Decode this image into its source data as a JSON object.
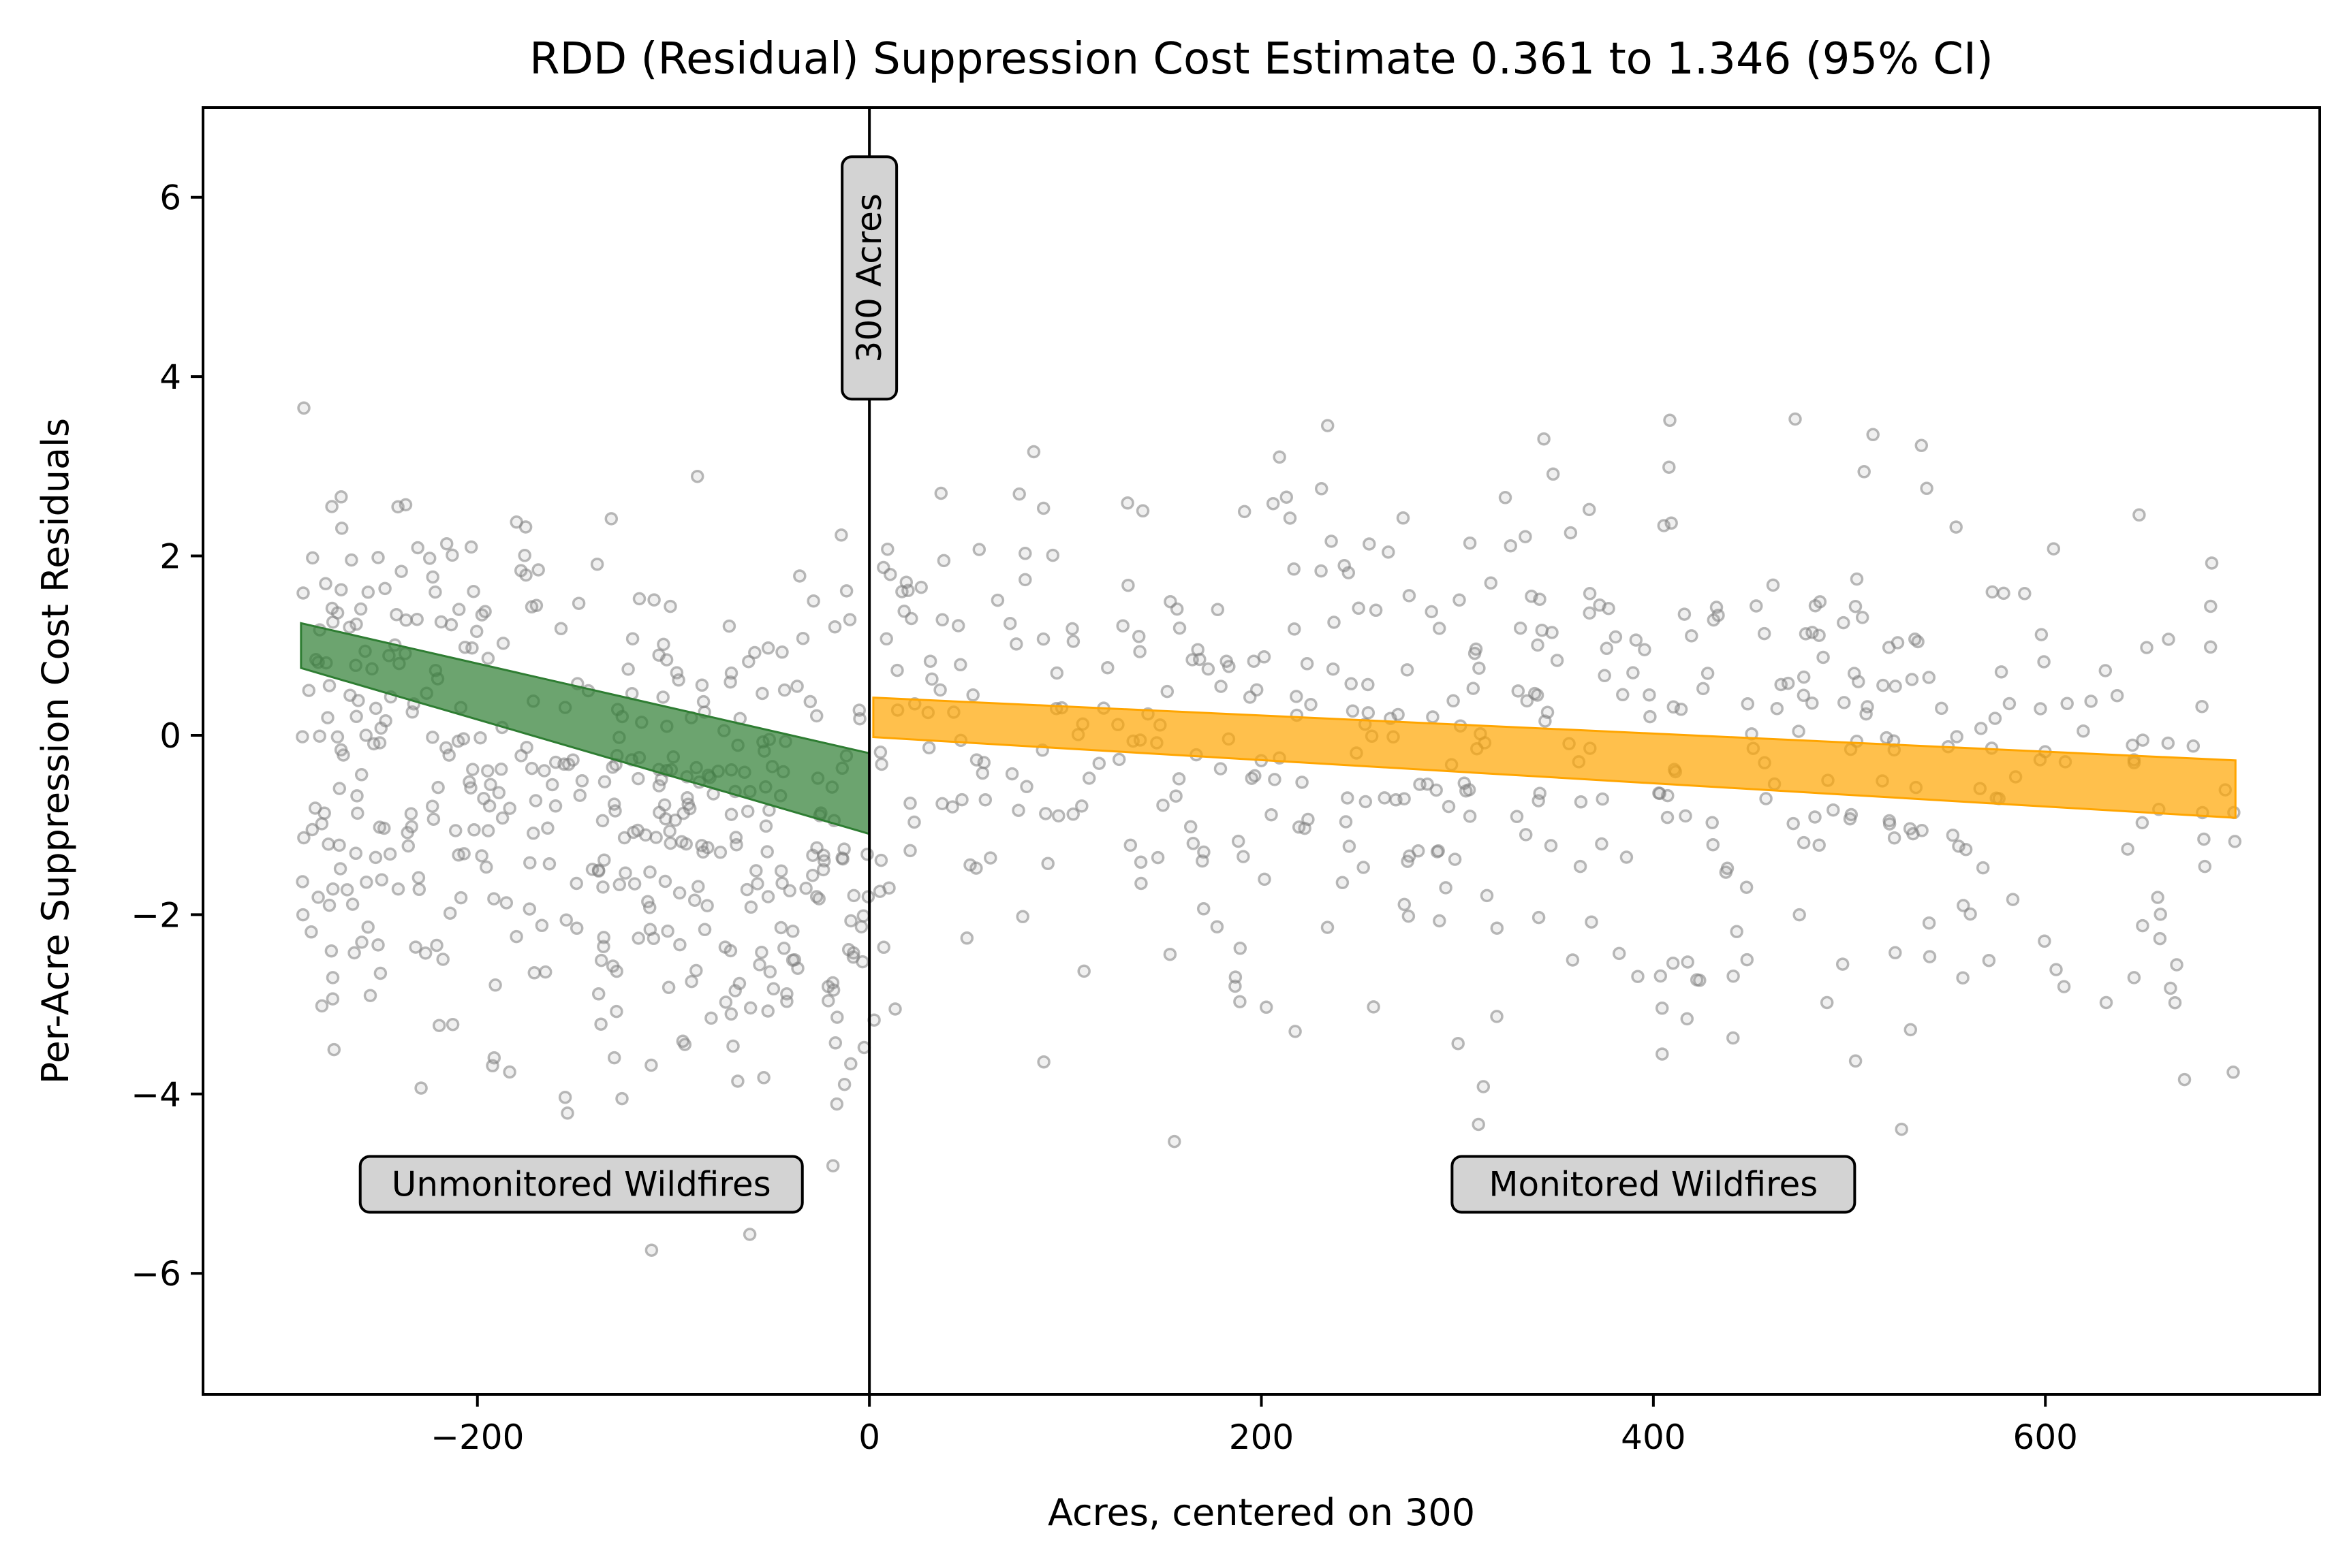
{
  "chart_data": {
    "type": "scatter",
    "title": "RDD (Residual) Suppression Cost Estimate 0.361 to 1.346 (95% CI)",
    "xlabel": "Acres, centered on 300",
    "ylabel": "Per-Acre Suppression Cost Residuals",
    "xlim": [
      -340,
      740
    ],
    "ylim": [
      -7.35,
      7.0
    ],
    "xticks": [
      -200,
      0,
      200,
      400,
      600
    ],
    "yticks": [
      -6,
      -4,
      -2,
      0,
      2,
      4,
      6
    ],
    "grid": false,
    "cutoff": {
      "x": 0,
      "label": "300 Acres"
    },
    "annotations": [
      {
        "text": "Unmonitored Wildfires",
        "x": -147,
        "y": -5.0
      },
      {
        "text": "Monitored Wildfires",
        "x": 400,
        "y": -5.0
      }
    ],
    "series": [
      {
        "color": "#808080"
      },
      {
        "color": "#2e7d32",
        "x": [
          -290,
          0
        ],
        "upper": [
          1.25,
          -0.2
        ],
        "lower": [
          0.75,
          -1.1
        ]
      },
      {
        "color": "#ffa500",
        "x": [
          2,
          697
        ],
        "upper": [
          0.42,
          -0.28
        ],
        "lower": [
          -0.02,
          -0.92
        ]
      }
    ]
  }
}
